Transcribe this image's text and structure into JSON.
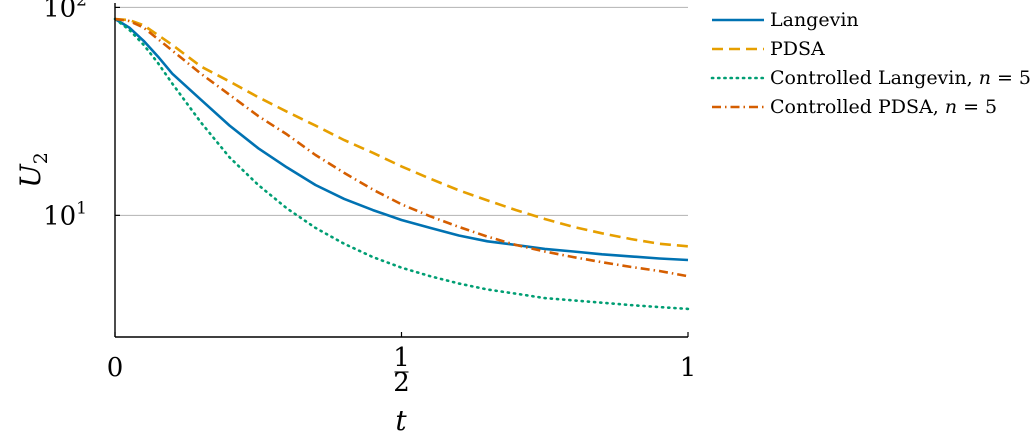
{
  "chart_data": {
    "type": "line",
    "title": "",
    "xlabel": "t",
    "ylabel": "U",
    "ylabel_subscript": "2",
    "xlim": [
      0,
      1
    ],
    "ylim": [
      2.6,
      105
    ],
    "yscale": "log",
    "grid": "horizontal at decades",
    "legend_position": "right",
    "x_ticks": [
      {
        "value": 0,
        "label": "0"
      },
      {
        "value": 0.5,
        "label": "1/2"
      },
      {
        "value": 1,
        "label": "1"
      }
    ],
    "y_ticks": [
      {
        "value": 10,
        "base": "10",
        "exp": "1"
      },
      {
        "value": 100,
        "base": "10",
        "exp": "2"
      }
    ],
    "series": [
      {
        "name": "Langevin",
        "color": "#0072b2",
        "style": "solid",
        "x": [
          0,
          0.025,
          0.05,
          0.075,
          0.1,
          0.15,
          0.2,
          0.25,
          0.3,
          0.35,
          0.4,
          0.45,
          0.5,
          0.55,
          0.6,
          0.65,
          0.7,
          0.75,
          0.8,
          0.85,
          0.9,
          0.95,
          1.0
        ],
        "values": [
          88,
          80,
          69,
          58,
          48,
          36,
          27,
          21,
          17,
          14,
          12,
          10.6,
          9.5,
          8.7,
          8.0,
          7.5,
          7.2,
          6.9,
          6.7,
          6.5,
          6.35,
          6.2,
          6.1
        ]
      },
      {
        "name": "PDSA",
        "color": "#e69f00",
        "style": "dashed",
        "x": [
          0,
          0.025,
          0.05,
          0.1,
          0.15,
          0.2,
          0.25,
          0.3,
          0.35,
          0.4,
          0.45,
          0.5,
          0.55,
          0.6,
          0.65,
          0.7,
          0.75,
          0.8,
          0.85,
          0.9,
          0.95,
          1.0
        ],
        "values": [
          88,
          87,
          82,
          66,
          52,
          44,
          37,
          31.5,
          27,
          23,
          20,
          17.2,
          15,
          13.2,
          11.8,
          10.6,
          9.6,
          8.8,
          8.2,
          7.7,
          7.3,
          7.1
        ]
      },
      {
        "name": "Controlled Langevin, n = 5",
        "color": "#009e73",
        "style": "dotted",
        "x": [
          0,
          0.025,
          0.05,
          0.075,
          0.1,
          0.15,
          0.2,
          0.25,
          0.3,
          0.35,
          0.4,
          0.45,
          0.5,
          0.55,
          0.6,
          0.65,
          0.7,
          0.75,
          0.8,
          0.85,
          0.9,
          0.95,
          1.0
        ],
        "values": [
          88,
          78,
          66,
          54,
          43,
          28,
          19,
          14,
          10.8,
          8.7,
          7.3,
          6.3,
          5.6,
          5.1,
          4.7,
          4.4,
          4.2,
          4.0,
          3.9,
          3.8,
          3.7,
          3.62,
          3.55
        ]
      },
      {
        "name": "Controlled PDSA, n = 5",
        "color": "#d55e00",
        "style": "dashdot",
        "x": [
          0,
          0.025,
          0.05,
          0.1,
          0.15,
          0.2,
          0.25,
          0.3,
          0.35,
          0.4,
          0.45,
          0.5,
          0.55,
          0.6,
          0.65,
          0.7,
          0.75,
          0.8,
          0.85,
          0.9,
          0.95,
          1.0
        ],
        "values": [
          88,
          86,
          80,
          62,
          48,
          38,
          30,
          24.5,
          19.5,
          16,
          13.3,
          11.3,
          9.9,
          8.8,
          7.9,
          7.2,
          6.7,
          6.3,
          5.95,
          5.65,
          5.4,
          5.1
        ]
      }
    ]
  }
}
